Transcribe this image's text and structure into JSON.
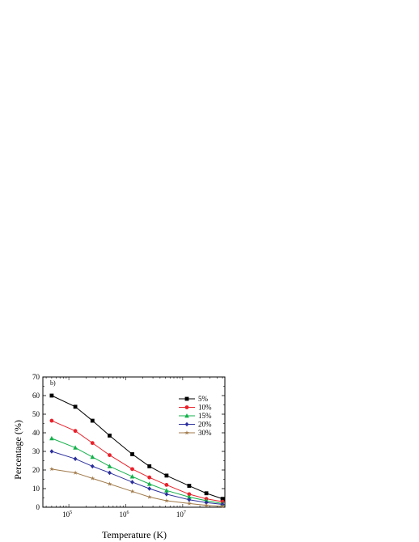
{
  "chart_data": {
    "type": "line",
    "panel_label": "b)",
    "xlabel": "Temperature (K)",
    "ylabel": "Percentage (%)",
    "xscale": "log",
    "xlim": [
      35000,
      55000000
    ],
    "ylim": [
      0,
      70
    ],
    "yticks": [
      0,
      10,
      20,
      30,
      40,
      50,
      60,
      70
    ],
    "xticks": [
      {
        "value": 100000,
        "base": "10",
        "exp": "5"
      },
      {
        "value": 1000000,
        "base": "10",
        "exp": "6"
      },
      {
        "value": 10000000,
        "base": "10",
        "exp": "7"
      }
    ],
    "grid": false,
    "legend_position": "right",
    "x": [
      50000,
      130000,
      260000,
      520000,
      1300000,
      2600000,
      5200000,
      13000000,
      26000000,
      50000000
    ],
    "series": [
      {
        "name": "5%",
        "color": "#000000",
        "marker": "square",
        "values": [
          60,
          54,
          46.5,
          38.5,
          28.5,
          22,
          17,
          11.5,
          7.5,
          4.5
        ]
      },
      {
        "name": "10%",
        "color": "#e8202a",
        "marker": "circle",
        "values": [
          46.5,
          41,
          34.5,
          28,
          20.5,
          16,
          12,
          7,
          4.5,
          3
        ]
      },
      {
        "name": "15%",
        "color": "#14b14b",
        "marker": "triangle",
        "values": [
          37,
          32,
          27,
          22,
          16.5,
          12.5,
          9,
          5.5,
          3.5,
          2
        ]
      },
      {
        "name": "20%",
        "color": "#2b2f9c",
        "marker": "diamond",
        "values": [
          30,
          26,
          22,
          18.5,
          13.5,
          10,
          7,
          4,
          2.5,
          1.5
        ]
      },
      {
        "name": "30%",
        "color": "#a07a4a",
        "marker": "star",
        "values": [
          20.5,
          18.5,
          15.5,
          12.5,
          8.5,
          5.5,
          3.5,
          2,
          1,
          0.5
        ]
      }
    ]
  }
}
